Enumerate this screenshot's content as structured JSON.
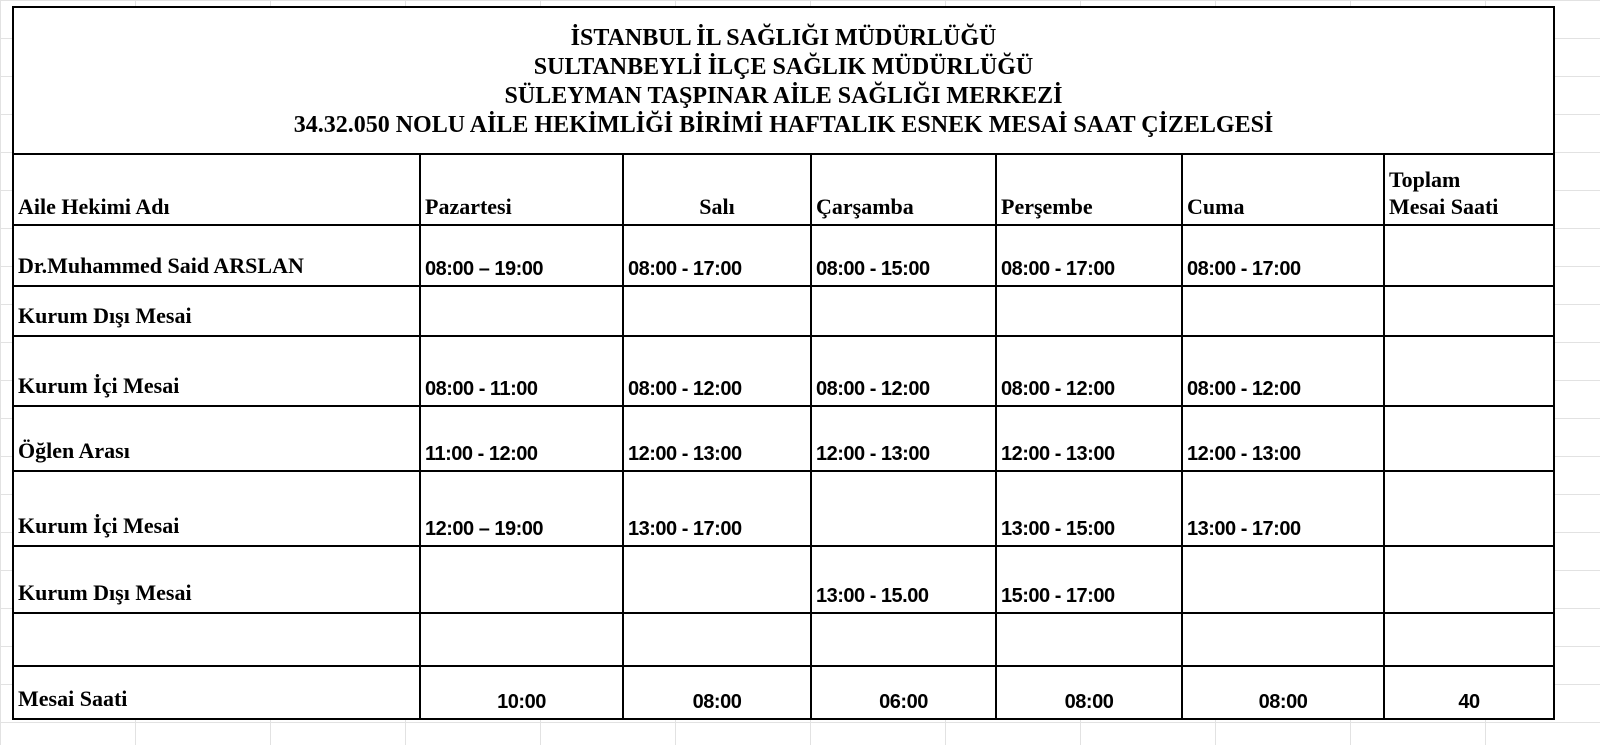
{
  "title_lines": [
    "İSTANBUL İL  SAĞLIĞI MÜDÜRLÜĞÜ",
    "SULTANBEYLİ İLÇE SAĞLIK MÜDÜRLÜĞÜ",
    "SÜLEYMAN TAŞPINAR AİLE SAĞLIĞI MERKEZİ",
    "34.32.050 NOLU AİLE HEKİMLİĞİ BİRİMİ HAFTALIK ESNEK MESAİ SAAT ÇİZELGESİ"
  ],
  "headers": [
    "Aile Hekimi Adı",
    "Pazartesi",
    "Salı",
    "Çarşamba",
    "Perşembe",
    "Cuma",
    "Toplam",
    "Mesai Saati"
  ],
  "rows": [
    {
      "label": "Dr.Muhammed Said ARSLAN",
      "cells": [
        "08:00 – 19:00",
        "08:00 - 17:00",
        "08:00 - 15:00",
        "08:00 - 17:00",
        "08:00 - 17:00",
        ""
      ]
    },
    {
      "label": "Kurum Dışı Mesai",
      "cells": [
        "",
        "",
        "",
        "",
        "",
        ""
      ]
    },
    {
      "label": "Kurum İçi  Mesai",
      "cells": [
        "08:00 - 11:00",
        "08:00 - 12:00",
        "08:00 - 12:00",
        "08:00 - 12:00",
        "08:00 - 12:00",
        ""
      ]
    },
    {
      "label": "Öğlen Arası",
      "cells": [
        "11:00 - 12:00",
        "12:00 - 13:00",
        "12:00 - 13:00",
        "12:00 - 13:00",
        "12:00 - 13:00",
        ""
      ]
    },
    {
      "label": "Kurum İçi  Mesai",
      "cells": [
        "12:00 – 19:00",
        "13:00 - 17:00",
        "",
        "13:00 - 15:00",
        "13:00 - 17:00",
        ""
      ]
    },
    {
      "label": "Kurum Dışı Mesai",
      "cells": [
        "",
        "",
        "13:00 - 15.00",
        "15:00 - 17:00",
        "",
        ""
      ]
    },
    {
      "label": "",
      "cells": [
        "",
        "",
        "",
        "",
        "",
        ""
      ]
    }
  ],
  "totals": {
    "label": "Mesai Saati",
    "cells": [
      "10:00",
      "08:00",
      "06:00",
      "08:00",
      "08:00",
      "40"
    ]
  }
}
